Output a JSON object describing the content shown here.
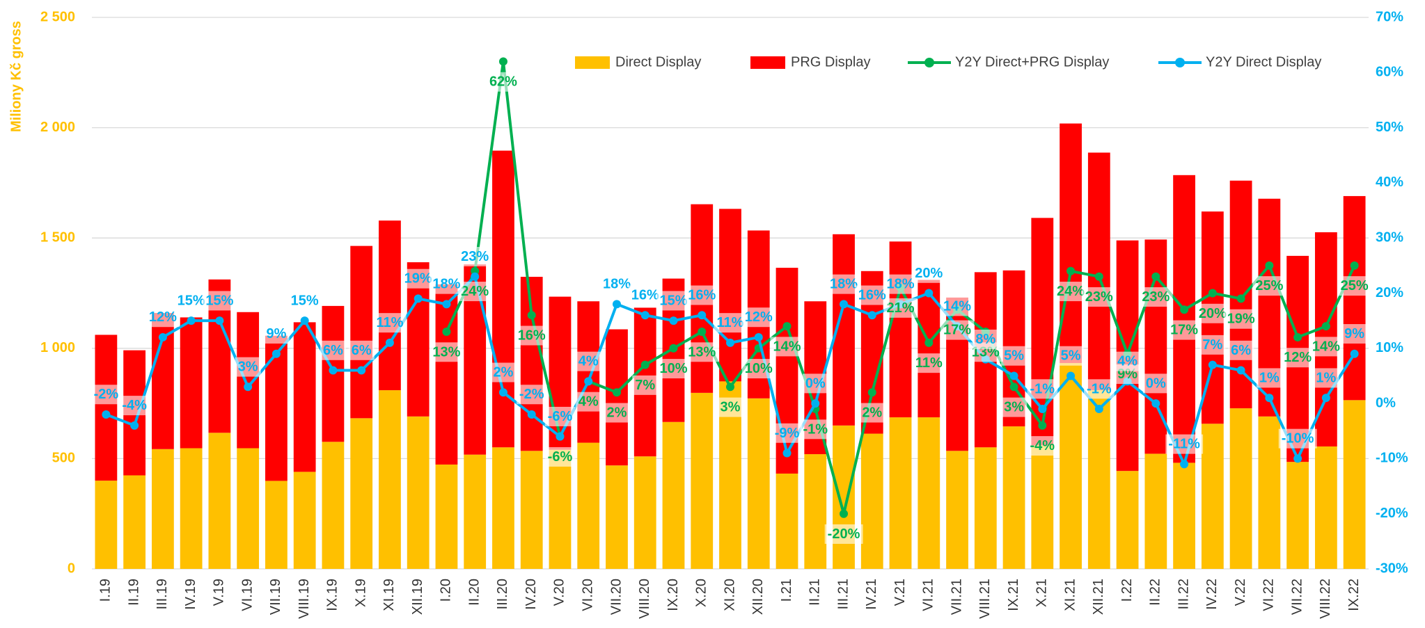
{
  "chart_data": {
    "type": "bar",
    "y_label": "Miliony Kč gross",
    "categories": [
      "I.19",
      "II.19",
      "III.19",
      "IV.19",
      "V.19",
      "VI.19",
      "VII.19",
      "VIII.19",
      "IX.19",
      "X.19",
      "XI.19",
      "XII.19",
      "I.20",
      "II.20",
      "III.20",
      "IV.20",
      "V.20",
      "VI.20",
      "VII.20",
      "VIII.20",
      "IX.20",
      "X.20",
      "XI.20",
      "XII.20",
      "I.21",
      "II.21",
      "III.21",
      "IV.21",
      "V.21",
      "VI.21",
      "VII.21",
      "VIII.21",
      "IX.21",
      "X.21",
      "XI.21",
      "XII.21",
      "I.22",
      "II.22",
      "III.22",
      "IV.22",
      "V.22",
      "VI.22",
      "VII.22",
      "VIII.22",
      "IX.22"
    ],
    "ylim": [
      0,
      2500
    ],
    "yticks": [
      0,
      500,
      {
        "value": 1000,
        "label": "1 000"
      },
      {
        "value": 1500,
        "label": "1 500"
      },
      {
        "value": 2000,
        "label": "2 000"
      },
      {
        "value": 2500,
        "label": "2 500"
      }
    ],
    "y2lim": [
      -30,
      70
    ],
    "y2ticks": [
      {
        "value": -30,
        "label": "-30%"
      },
      {
        "value": -20,
        "label": "-20%"
      },
      {
        "value": -10,
        "label": "-10%"
      },
      {
        "value": 0,
        "label": "0%"
      },
      {
        "value": 10,
        "label": "10%"
      },
      {
        "value": 20,
        "label": "20%"
      },
      {
        "value": 30,
        "label": "30%"
      },
      {
        "value": 40,
        "label": "40%"
      },
      {
        "value": 50,
        "label": "50%"
      },
      {
        "value": 60,
        "label": "60%"
      },
      {
        "value": 70,
        "label": "70%"
      }
    ],
    "grid": true,
    "series": [
      {
        "name": "Direct Display",
        "type": "bar",
        "color": "#ffc000",
        "values": [
          400,
          424,
          543,
          547,
          617,
          547,
          399,
          440,
          576,
          683,
          810,
          691,
          473,
          518,
          551,
          535,
          540,
          572,
          469,
          510,
          666,
          798,
          850,
          773,
          432,
          520,
          650,
          613,
          687,
          687,
          535,
          551,
          646,
          560,
          933,
          810,
          444,
          522,
          481,
          658,
          728,
          691,
          485,
          555,
          765
        ]
      },
      {
        "name": "PRG Display",
        "type": "bar",
        "color": "#ff0000",
        "values": [
          661,
          567,
          617,
          593,
          695,
          617,
          658,
          678,
          616,
          781,
          769,
          699,
          817,
          862,
          1345,
          789,
          694,
          641,
          617,
          674,
          650,
          855,
          782,
          761,
          933,
          693,
          867,
          737,
          797,
          623,
          695,
          794,
          707,
          1031,
          1086,
          1077,
          1045,
          971,
          1304,
          962,
          1032,
          987,
          934,
          971,
          925
        ]
      },
      {
        "name": "Y2Y Direct+PRG Display",
        "type": "line",
        "axis": "y2",
        "color": "#00b050",
        "values": [
          null,
          null,
          null,
          null,
          null,
          null,
          null,
          null,
          null,
          null,
          null,
          null,
          13,
          24,
          62,
          16,
          -6,
          4,
          2,
          7,
          10,
          13,
          3,
          10,
          14,
          -1,
          -20,
          2,
          21,
          11,
          17,
          13,
          3,
          -4,
          24,
          23,
          9,
          23,
          17,
          20,
          19,
          25,
          12,
          14,
          25
        ],
        "value_labels": [
          null,
          null,
          null,
          null,
          null,
          null,
          null,
          null,
          null,
          null,
          null,
          null,
          "13%",
          "24%",
          "62%",
          "16%",
          "-6%",
          "4%",
          "2%",
          "7%",
          "10%",
          "13%",
          "3%",
          "10%",
          "14%",
          "-1%",
          "-20%",
          "2%",
          "21%",
          "11%",
          "17%",
          "13%",
          "3%",
          "-4%",
          "24%",
          "23%",
          "9%",
          "23%",
          "17%",
          "20%",
          "19%",
          "25%",
          "12%",
          "14%",
          "25%"
        ]
      },
      {
        "name": "Y2Y Direct Display",
        "type": "line",
        "axis": "y2",
        "color": "#00b0f0",
        "values": [
          -2,
          -4,
          12,
          15,
          15,
          3,
          9,
          15,
          6,
          6,
          11,
          19,
          18,
          23,
          2,
          -2,
          -6,
          4,
          18,
          16,
          15,
          16,
          11,
          12,
          -9,
          0,
          18,
          16,
          18,
          20,
          14,
          8,
          5,
          -1,
          5,
          -1,
          4,
          0,
          -11,
          7,
          6,
          1,
          -10,
          1,
          9
        ],
        "value_labels": [
          "-2%",
          "-4%",
          "12%",
          "15%",
          "15%",
          "3%",
          "9%",
          "15%",
          "6%",
          "6%",
          "11%",
          "19%",
          "18%",
          "23%",
          "2%",
          "-2%",
          "-6%",
          "4%",
          "18%",
          "16%",
          "15%",
          "16%",
          "11%",
          "12%",
          "-9%",
          "0%",
          "18%",
          "16%",
          "18%",
          "20%",
          "14%",
          "8%",
          "5%",
          "-1%",
          "5%",
          "-1%",
          "4%",
          "0%",
          "-11%",
          "7%",
          "6%",
          "1%",
          "-10%",
          "1%",
          "9%"
        ]
      }
    ]
  }
}
